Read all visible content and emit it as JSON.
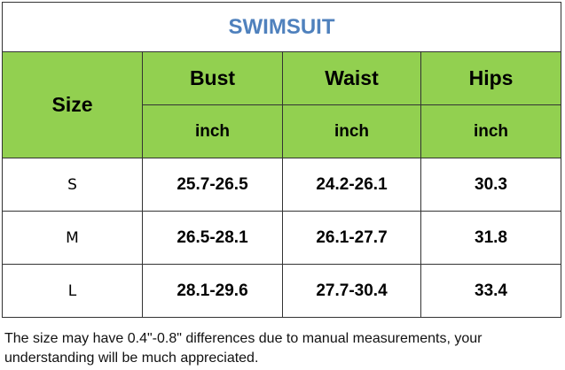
{
  "title": "SWIMSUIT",
  "table": {
    "size_header": "Size",
    "columns": [
      {
        "name": "Bust",
        "unit": "inch"
      },
      {
        "name": "Waist",
        "unit": "inch"
      },
      {
        "name": "Hips",
        "unit": "inch"
      }
    ],
    "rows": [
      [
        "S",
        "25.7-26.5",
        "24.2-26.1",
        "30.3"
      ],
      [
        "M",
        "26.5-28.1",
        "26.1-27.7",
        "31.8"
      ],
      [
        "L",
        "28.1-29.6",
        "27.7-30.4",
        "33.4"
      ]
    ]
  },
  "note": "The size may have 0.4\"-0.8\" differences due to manual measurements, your understanding will be much appreciated."
}
